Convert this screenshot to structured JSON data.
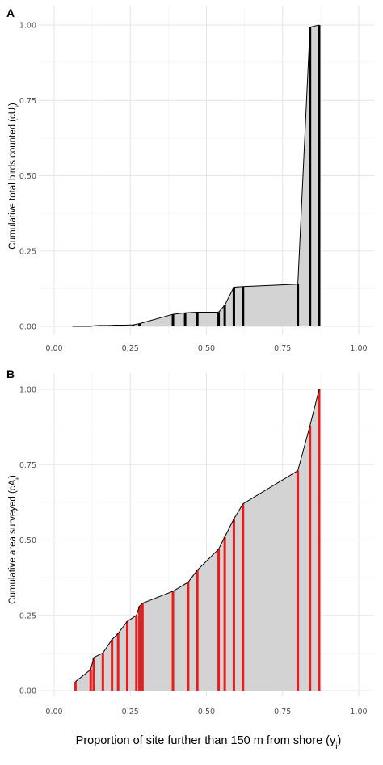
{
  "chart_data": [
    {
      "panel": "A",
      "type": "area",
      "ylabel_main": "Cumulative total birds counted (cU",
      "ylabel_sub": "i",
      "ylabel_end": ")",
      "xlim": [
        0,
        1
      ],
      "ylim": [
        0,
        1
      ],
      "x_ticks": [
        "0.00",
        "0.25",
        "0.50",
        "0.75",
        "1.00"
      ],
      "y_ticks": [
        "0.00",
        "0.25",
        "0.50",
        "0.75",
        "1.00"
      ],
      "grid": true,
      "fill_color": "#d3d3d3",
      "bar_color": "#000000",
      "points": [
        {
          "x": 0.06,
          "y": 0.0,
          "bar": false
        },
        {
          "x": 0.12,
          "y": 0.0,
          "bar": false
        },
        {
          "x": 0.13,
          "y": 0.002,
          "bar": false
        },
        {
          "x": 0.15,
          "y": 0.003,
          "bar": true
        },
        {
          "x": 0.18,
          "y": 0.003,
          "bar": true
        },
        {
          "x": 0.2,
          "y": 0.004,
          "bar": true
        },
        {
          "x": 0.23,
          "y": 0.004,
          "bar": true
        },
        {
          "x": 0.26,
          "y": 0.005,
          "bar": true
        },
        {
          "x": 0.28,
          "y": 0.009,
          "bar": true
        },
        {
          "x": 0.39,
          "y": 0.04,
          "bar": true
        },
        {
          "x": 0.43,
          "y": 0.045,
          "bar": true
        },
        {
          "x": 0.47,
          "y": 0.047,
          "bar": true
        },
        {
          "x": 0.54,
          "y": 0.047,
          "bar": true
        },
        {
          "x": 0.56,
          "y": 0.07,
          "bar": true
        },
        {
          "x": 0.59,
          "y": 0.13,
          "bar": true
        },
        {
          "x": 0.62,
          "y": 0.132,
          "bar": true
        },
        {
          "x": 0.8,
          "y": 0.14,
          "bar": true
        },
        {
          "x": 0.84,
          "y": 0.993,
          "bar": true
        },
        {
          "x": 0.87,
          "y": 1.0,
          "bar": true
        }
      ]
    },
    {
      "panel": "B",
      "type": "area",
      "ylabel_main": "Cumulative area surveyed (cA",
      "ylabel_sub": "i",
      "ylabel_end": ")",
      "xlim": [
        0,
        1
      ],
      "ylim": [
        0,
        1
      ],
      "x_ticks": [
        "0.00",
        "0.25",
        "0.50",
        "0.75",
        "1.00"
      ],
      "y_ticks": [
        "0.00",
        "0.25",
        "0.50",
        "0.75",
        "1.00"
      ],
      "grid": true,
      "fill_color": "#d3d3d3",
      "bar_color": "#e81c1c",
      "points": [
        {
          "x": 0.07,
          "y": 0.03,
          "bar": true
        },
        {
          "x": 0.12,
          "y": 0.07,
          "bar": true
        },
        {
          "x": 0.13,
          "y": 0.11,
          "bar": true
        },
        {
          "x": 0.16,
          "y": 0.125,
          "bar": true
        },
        {
          "x": 0.19,
          "y": 0.17,
          "bar": true
        },
        {
          "x": 0.21,
          "y": 0.19,
          "bar": true
        },
        {
          "x": 0.24,
          "y": 0.23,
          "bar": true
        },
        {
          "x": 0.27,
          "y": 0.25,
          "bar": true
        },
        {
          "x": 0.28,
          "y": 0.28,
          "bar": true
        },
        {
          "x": 0.29,
          "y": 0.29,
          "bar": true
        },
        {
          "x": 0.39,
          "y": 0.33,
          "bar": true
        },
        {
          "x": 0.44,
          "y": 0.36,
          "bar": true
        },
        {
          "x": 0.47,
          "y": 0.4,
          "bar": true
        },
        {
          "x": 0.54,
          "y": 0.47,
          "bar": true
        },
        {
          "x": 0.56,
          "y": 0.51,
          "bar": true
        },
        {
          "x": 0.59,
          "y": 0.57,
          "bar": true
        },
        {
          "x": 0.62,
          "y": 0.62,
          "bar": true
        },
        {
          "x": 0.8,
          "y": 0.73,
          "bar": true
        },
        {
          "x": 0.84,
          "y": 0.88,
          "bar": true
        },
        {
          "x": 0.87,
          "y": 1.0,
          "bar": true
        }
      ]
    }
  ],
  "shared_xlabel_main": "Proportion of site further than 150 m from shore (y",
  "shared_xlabel_sub": "i",
  "shared_xlabel_end": ")"
}
